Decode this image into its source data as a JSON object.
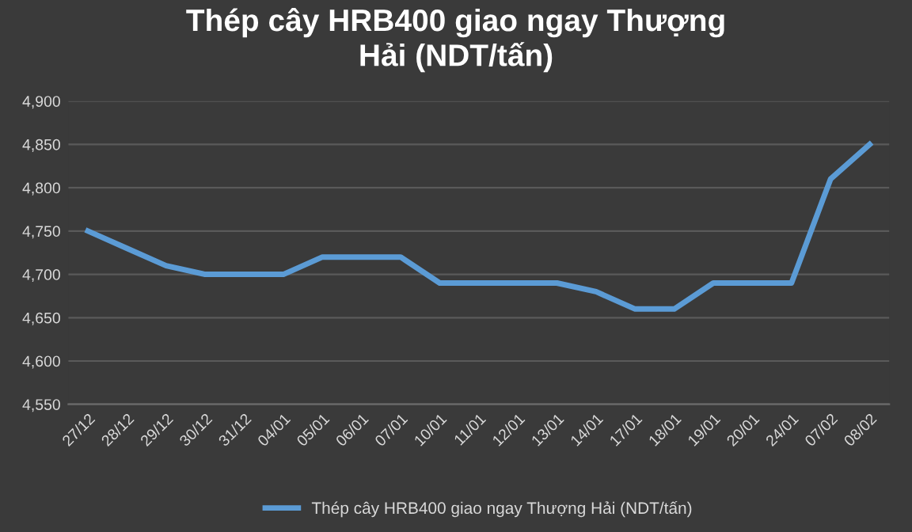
{
  "chart_data": {
    "type": "line",
    "title": "Thép cây HRB400 giao ngay Thượng\nHải (NDT/tấn)",
    "categories": [
      "27/12",
      "28/12",
      "29/12",
      "30/12",
      "31/12",
      "04/01",
      "05/01",
      "06/01",
      "07/01",
      "10/01",
      "11/01",
      "12/01",
      "13/01",
      "14/01",
      "17/01",
      "18/01",
      "19/01",
      "20/01",
      "24/01",
      "07/02",
      "08/02"
    ],
    "series": [
      {
        "name": "Thép cây HRB400 giao ngay Thượng Hải (NDT/tấn)",
        "color": "#5b9bd5",
        "values": [
          4750,
          4730,
          4710,
          4700,
          4700,
          4700,
          4720,
          4720,
          4720,
          4690,
          4690,
          4690,
          4690,
          4680,
          4660,
          4660,
          4690,
          4690,
          4690,
          4810,
          4850
        ]
      }
    ],
    "ylim": [
      4550,
      4900
    ],
    "yticks": [
      {
        "value": 4550,
        "label": "4,550"
      },
      {
        "value": 4600,
        "label": "4,600"
      },
      {
        "value": 4650,
        "label": "4,650"
      },
      {
        "value": 4700,
        "label": "4,700"
      },
      {
        "value": 4750,
        "label": "4,750"
      },
      {
        "value": 4800,
        "label": "4,800"
      },
      {
        "value": 4850,
        "label": "4,850"
      },
      {
        "value": 4900,
        "label": "4,900"
      }
    ],
    "grid": "y",
    "legend": "bottom",
    "marker": "none",
    "line_style": "solid"
  }
}
